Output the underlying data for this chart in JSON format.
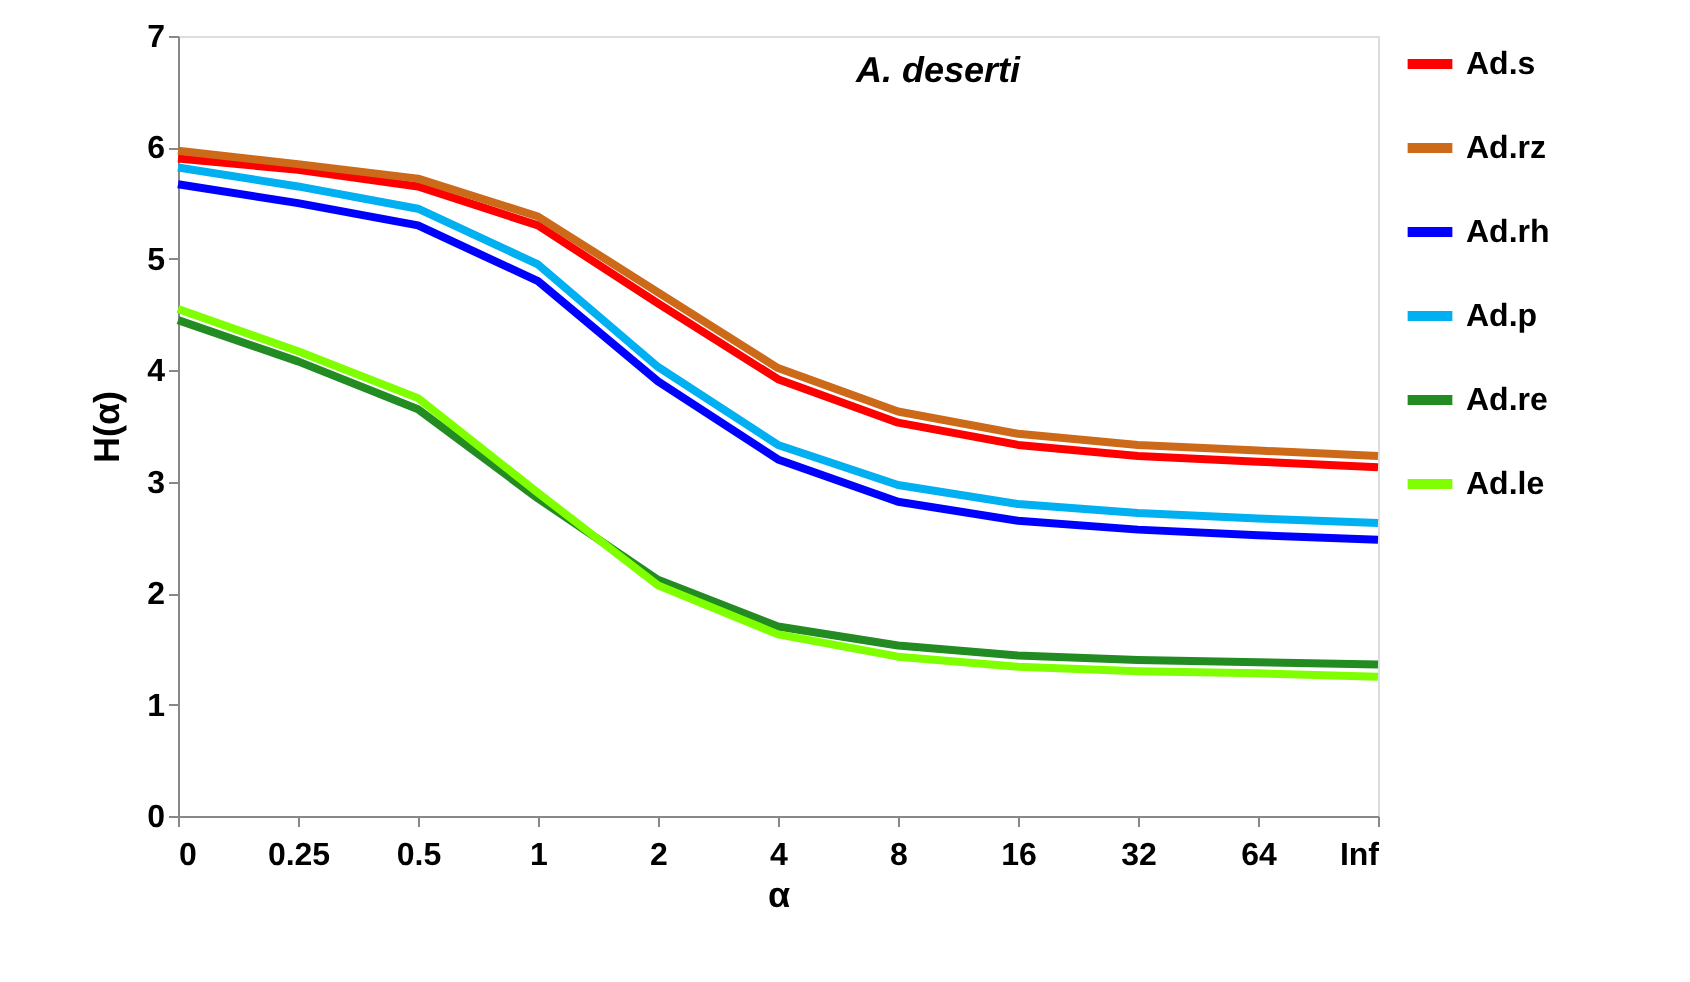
{
  "chart_data": {
    "type": "line",
    "title": "A. deserti",
    "xlabel": "α",
    "ylabel": "H(α)",
    "categories": [
      "0",
      "0.25",
      "0.5",
      "1",
      "2",
      "4",
      "8",
      "16",
      "32",
      "64",
      "Inf"
    ],
    "ylim": [
      0,
      7
    ],
    "yticks": [
      0,
      1,
      2,
      3,
      4,
      5,
      6,
      7
    ],
    "grid": false,
    "legend": "right",
    "marker": "none",
    "line_style": "solid",
    "series": [
      {
        "name": "Ad.s",
        "color": "#ff0000",
        "values": [
          5.9,
          5.8,
          5.65,
          5.3,
          4.6,
          3.92,
          3.53,
          3.33,
          3.23,
          3.18,
          3.13
        ]
      },
      {
        "name": "Ad.rz",
        "color": "#cc6a1a",
        "values": [
          5.97,
          5.85,
          5.72,
          5.38,
          4.7,
          4.02,
          3.63,
          3.43,
          3.33,
          3.28,
          3.23
        ]
      },
      {
        "name": "Ad.rh",
        "color": "#0000ff",
        "values": [
          5.67,
          5.5,
          5.3,
          4.8,
          3.9,
          3.2,
          2.82,
          2.65,
          2.57,
          2.52,
          2.48
        ]
      },
      {
        "name": "Ad.p",
        "color": "#00b0f0",
        "values": [
          5.82,
          5.65,
          5.45,
          4.95,
          4.03,
          3.33,
          2.97,
          2.8,
          2.72,
          2.67,
          2.63
        ]
      },
      {
        "name": "Ad.re",
        "color": "#228b22",
        "values": [
          4.45,
          4.08,
          3.65,
          2.85,
          2.12,
          1.7,
          1.53,
          1.44,
          1.4,
          1.38,
          1.36
        ]
      },
      {
        "name": "Ad.le",
        "color": "#7fff00",
        "values": [
          4.55,
          4.17,
          3.75,
          2.9,
          2.07,
          1.63,
          1.43,
          1.34,
          1.3,
          1.28,
          1.25
        ]
      }
    ]
  }
}
